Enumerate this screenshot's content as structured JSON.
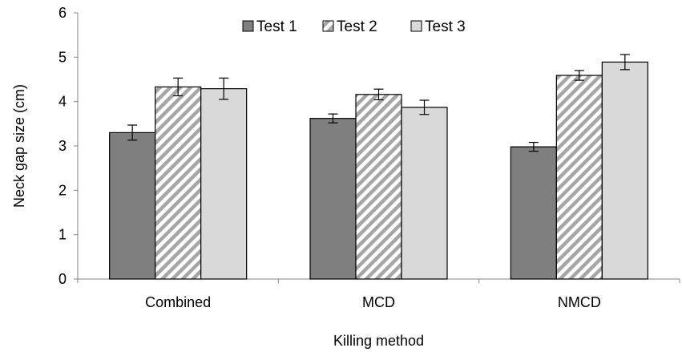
{
  "chart_data": {
    "type": "bar",
    "categories": [
      "Combined",
      "MCD",
      "NMCD"
    ],
    "series": [
      {
        "name": "Test 1",
        "values": [
          3.3,
          3.62,
          2.98
        ],
        "errors": [
          0.17,
          0.1,
          0.1
        ],
        "fill": "#7f7f7f",
        "pattern": "solid"
      },
      {
        "name": "Test 2",
        "values": [
          4.33,
          4.16,
          4.59
        ],
        "errors": [
          0.2,
          0.12,
          0.11
        ],
        "fill": "#ffffff",
        "pattern": "diagonal-stripes",
        "stripe_color": "#a6a6a6"
      },
      {
        "name": "Test 3",
        "values": [
          4.29,
          3.87,
          4.89
        ],
        "errors": [
          0.24,
          0.16,
          0.17
        ],
        "fill": "#d9d9d9",
        "pattern": "solid"
      }
    ],
    "title": "",
    "xlabel": "Killing method",
    "ylabel": "Neck gap size (cm)",
    "ylim": [
      0,
      6
    ],
    "yticks": [
      "0",
      "1",
      "2",
      "3",
      "4",
      "5",
      "6"
    ],
    "grid": false,
    "legend_position": "top"
  }
}
